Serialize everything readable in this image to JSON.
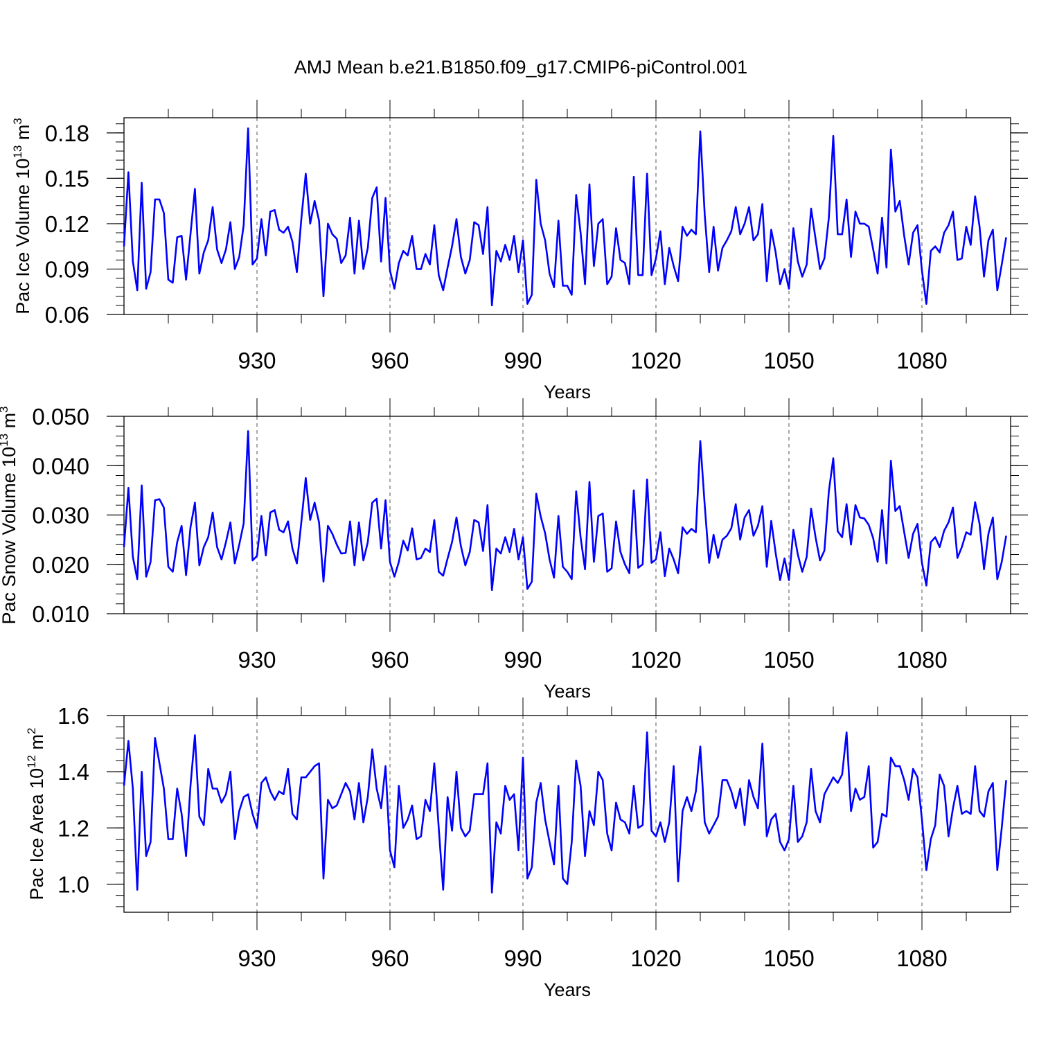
{
  "title": "AMJ Mean b.e21.B1850.f09_g17.CMIP6-piControl.001",
  "colors": {
    "line": "#0000ff",
    "axis": "#000000",
    "grid": "#555555"
  },
  "chart_data": [
    {
      "type": "line",
      "ylabel_main": "Pac Ice Volume 10",
      "ylabel_exp": "13",
      "ylabel_unit": " m",
      "ylabel_unit_exp": "3",
      "xlabel": "Years",
      "xlim": [
        900,
        1100
      ],
      "ylim": [
        0.06,
        0.19
      ],
      "xticks": [
        930,
        960,
        990,
        1020,
        1050,
        1080
      ],
      "xtick_labels": [
        "930",
        "960",
        "990",
        "1020",
        "1050",
        "1080"
      ],
      "yticks": [
        0.06,
        0.09,
        0.12,
        0.15,
        0.18
      ],
      "ytick_labels": [
        "0.06",
        "0.09",
        "0.12",
        "0.15",
        "0.18"
      ],
      "y_minor_step": 0.006,
      "grid_x": true,
      "series": [
        {
          "name": "Pac Ice Volume",
          "x_start": 900,
          "values": [
            0.105,
            0.154,
            0.095,
            0.076,
            0.147,
            0.077,
            0.088,
            0.136,
            0.136,
            0.127,
            0.083,
            0.081,
            0.111,
            0.112,
            0.083,
            0.113,
            0.143,
            0.087,
            0.101,
            0.109,
            0.131,
            0.103,
            0.094,
            0.103,
            0.121,
            0.09,
            0.098,
            0.119,
            0.183,
            0.093,
            0.097,
            0.123,
            0.099,
            0.128,
            0.129,
            0.116,
            0.114,
            0.118,
            0.108,
            0.088,
            0.123,
            0.153,
            0.12,
            0.135,
            0.122,
            0.072,
            0.12,
            0.113,
            0.11,
            0.094,
            0.099,
            0.124,
            0.087,
            0.122,
            0.09,
            0.104,
            0.137,
            0.144,
            0.095,
            0.137,
            0.089,
            0.077,
            0.094,
            0.102,
            0.099,
            0.112,
            0.09,
            0.09,
            0.1,
            0.093,
            0.119,
            0.086,
            0.076,
            0.091,
            0.105,
            0.123,
            0.098,
            0.087,
            0.096,
            0.121,
            0.119,
            0.1,
            0.131,
            0.066,
            0.102,
            0.095,
            0.106,
            0.096,
            0.112,
            0.088,
            0.109,
            0.067,
            0.073,
            0.149,
            0.12,
            0.109,
            0.087,
            0.078,
            0.122,
            0.079,
            0.079,
            0.073,
            0.139,
            0.114,
            0.08,
            0.146,
            0.092,
            0.12,
            0.123,
            0.08,
            0.085,
            0.117,
            0.096,
            0.094,
            0.08,
            0.151,
            0.086,
            0.086,
            0.153,
            0.086,
            0.097,
            0.115,
            0.08,
            0.104,
            0.092,
            0.082,
            0.118,
            0.112,
            0.116,
            0.113,
            0.181,
            0.126,
            0.088,
            0.118,
            0.089,
            0.104,
            0.109,
            0.115,
            0.131,
            0.113,
            0.12,
            0.131,
            0.109,
            0.113,
            0.133,
            0.082,
            0.116,
            0.101,
            0.08,
            0.09,
            0.077,
            0.117,
            0.095,
            0.085,
            0.093,
            0.13,
            0.11,
            0.09,
            0.097,
            0.124,
            0.178,
            0.113,
            0.113,
            0.136,
            0.098,
            0.128,
            0.12,
            0.12,
            0.118,
            0.103,
            0.087,
            0.124,
            0.091,
            0.169,
            0.128,
            0.135,
            0.112,
            0.093,
            0.114,
            0.119,
            0.089,
            0.067,
            0.102,
            0.105,
            0.101,
            0.114,
            0.119,
            0.128,
            0.096,
            0.097,
            0.118,
            0.106,
            0.138,
            0.118,
            0.085,
            0.109,
            0.116,
            0.076,
            0.093,
            0.111
          ]
        }
      ]
    },
    {
      "type": "line",
      "ylabel_main": "Pac Snow Volume 10",
      "ylabel_exp": "13",
      "ylabel_unit": " m",
      "ylabel_unit_exp": "3",
      "xlabel": "Years",
      "xlim": [
        900,
        1100
      ],
      "ylim": [
        0.01,
        0.05
      ],
      "xticks": [
        930,
        960,
        990,
        1020,
        1050,
        1080
      ],
      "xtick_labels": [
        "930",
        "960",
        "990",
        "1020",
        "1050",
        "1080"
      ],
      "yticks": [
        0.01,
        0.02,
        0.03,
        0.04,
        0.05
      ],
      "ytick_labels": [
        "0.010",
        "0.020",
        "0.030",
        "0.040",
        "0.050"
      ],
      "y_minor_step": 0.002,
      "grid_x": true,
      "series": [
        {
          "name": "Pac Snow Volume",
          "x_start": 900,
          "values": [
            0.0235,
            0.0355,
            0.0215,
            0.017,
            0.036,
            0.0175,
            0.0205,
            0.033,
            0.0332,
            0.0315,
            0.0195,
            0.0185,
            0.0245,
            0.0278,
            0.0178,
            0.0275,
            0.0325,
            0.0198,
            0.0235,
            0.0255,
            0.0305,
            0.0235,
            0.021,
            0.0245,
            0.0285,
            0.0202,
            0.024,
            0.0283,
            0.047,
            0.0208,
            0.0217,
            0.0298,
            0.0218,
            0.0305,
            0.031,
            0.027,
            0.0265,
            0.0287,
            0.0232,
            0.0202,
            0.0285,
            0.0375,
            0.029,
            0.0325,
            0.0285,
            0.0165,
            0.0278,
            0.0262,
            0.024,
            0.0222,
            0.0223,
            0.0287,
            0.0198,
            0.0285,
            0.0208,
            0.0245,
            0.0325,
            0.0333,
            0.0232,
            0.033,
            0.0205,
            0.0175,
            0.0205,
            0.0248,
            0.0228,
            0.0273,
            0.021,
            0.0213,
            0.0232,
            0.0225,
            0.029,
            0.0185,
            0.0177,
            0.0212,
            0.0245,
            0.0295,
            0.0237,
            0.0198,
            0.0225,
            0.029,
            0.0285,
            0.0227,
            0.032,
            0.0148,
            0.0232,
            0.0222,
            0.0255,
            0.0225,
            0.0272,
            0.021,
            0.0255,
            0.015,
            0.0165,
            0.0343,
            0.0297,
            0.0263,
            0.021,
            0.0173,
            0.0298,
            0.0195,
            0.0185,
            0.017,
            0.0348,
            0.0255,
            0.019,
            0.0367,
            0.0205,
            0.0298,
            0.0303,
            0.0185,
            0.0192,
            0.0287,
            0.0225,
            0.02,
            0.0182,
            0.035,
            0.0193,
            0.02,
            0.0372,
            0.0203,
            0.021,
            0.0265,
            0.0176,
            0.0232,
            0.021,
            0.0182,
            0.0275,
            0.0262,
            0.0272,
            0.0265,
            0.045,
            0.032,
            0.0203,
            0.026,
            0.0213,
            0.025,
            0.0258,
            0.0273,
            0.0322,
            0.025,
            0.0295,
            0.031,
            0.0258,
            0.0278,
            0.0318,
            0.0195,
            0.0288,
            0.0223,
            0.0168,
            0.0212,
            0.0168,
            0.027,
            0.022,
            0.0185,
            0.0215,
            0.0313,
            0.0255,
            0.0208,
            0.0228,
            0.0348,
            0.0415,
            0.0267,
            0.0255,
            0.0322,
            0.024,
            0.032,
            0.0295,
            0.0293,
            0.028,
            0.0253,
            0.0205,
            0.031,
            0.0202,
            0.041,
            0.0308,
            0.0318,
            0.0265,
            0.0213,
            0.0262,
            0.0282,
            0.0203,
            0.0157,
            0.0245,
            0.0255,
            0.0235,
            0.0268,
            0.0285,
            0.0315,
            0.0213,
            0.0235,
            0.0265,
            0.026,
            0.0326,
            0.0282,
            0.019,
            0.0262,
            0.0295,
            0.017,
            0.0205,
            0.0258
          ]
        }
      ]
    },
    {
      "type": "line",
      "ylabel_main": "Pac Ice Area 10",
      "ylabel_exp": "12",
      "ylabel_unit": " m",
      "ylabel_unit_exp": "2",
      "xlabel": "Years",
      "xlim": [
        900,
        1100
      ],
      "ylim": [
        0.9,
        1.6
      ],
      "xticks": [
        930,
        960,
        990,
        1020,
        1050,
        1080
      ],
      "xtick_labels": [
        "930",
        "960",
        "990",
        "1020",
        "1050",
        "1080"
      ],
      "yticks": [
        1.0,
        1.2,
        1.4,
        1.6
      ],
      "ytick_labels": [
        "1.0",
        "1.2",
        "1.4",
        "1.6"
      ],
      "y_minor_step": 0.04,
      "grid_x": true,
      "series": [
        {
          "name": "Pac Ice Area",
          "x_start": 900,
          "values": [
            1.35,
            1.51,
            1.34,
            0.98,
            1.4,
            1.1,
            1.15,
            1.52,
            1.43,
            1.34,
            1.16,
            1.16,
            1.34,
            1.25,
            1.1,
            1.35,
            1.53,
            1.24,
            1.21,
            1.41,
            1.34,
            1.34,
            1.29,
            1.32,
            1.4,
            1.16,
            1.26,
            1.31,
            1.32,
            1.25,
            1.2,
            1.36,
            1.38,
            1.33,
            1.3,
            1.33,
            1.32,
            1.41,
            1.25,
            1.23,
            1.38,
            1.38,
            1.4,
            1.42,
            1.43,
            1.02,
            1.3,
            1.27,
            1.28,
            1.32,
            1.36,
            1.33,
            1.23,
            1.36,
            1.22,
            1.31,
            1.48,
            1.34,
            1.27,
            1.42,
            1.12,
            1.06,
            1.35,
            1.2,
            1.23,
            1.28,
            1.16,
            1.17,
            1.3,
            1.26,
            1.43,
            1.2,
            0.98,
            1.31,
            1.19,
            1.4,
            1.2,
            1.17,
            1.19,
            1.32,
            1.32,
            1.32,
            1.43,
            0.97,
            1.22,
            1.18,
            1.35,
            1.3,
            1.32,
            1.12,
            1.45,
            1.02,
            1.06,
            1.29,
            1.36,
            1.23,
            1.15,
            1.07,
            1.35,
            1.02,
            1.0,
            1.15,
            1.44,
            1.35,
            1.1,
            1.26,
            1.21,
            1.4,
            1.37,
            1.18,
            1.12,
            1.29,
            1.23,
            1.22,
            1.18,
            1.35,
            1.2,
            1.21,
            1.54,
            1.19,
            1.17,
            1.22,
            1.15,
            1.22,
            1.42,
            1.01,
            1.26,
            1.31,
            1.26,
            1.33,
            1.49,
            1.22,
            1.18,
            1.21,
            1.24,
            1.37,
            1.37,
            1.33,
            1.27,
            1.34,
            1.21,
            1.37,
            1.31,
            1.27,
            1.5,
            1.17,
            1.23,
            1.25,
            1.15,
            1.12,
            1.16,
            1.35,
            1.15,
            1.17,
            1.22,
            1.41,
            1.26,
            1.22,
            1.32,
            1.35,
            1.38,
            1.36,
            1.39,
            1.54,
            1.26,
            1.34,
            1.3,
            1.31,
            1.42,
            1.13,
            1.15,
            1.25,
            1.24,
            1.45,
            1.42,
            1.42,
            1.37,
            1.3,
            1.41,
            1.38,
            1.23,
            1.05,
            1.16,
            1.21,
            1.39,
            1.35,
            1.17,
            1.27,
            1.35,
            1.25,
            1.26,
            1.25,
            1.42,
            1.26,
            1.24,
            1.33,
            1.36,
            1.05,
            1.2,
            1.37
          ]
        }
      ]
    }
  ]
}
